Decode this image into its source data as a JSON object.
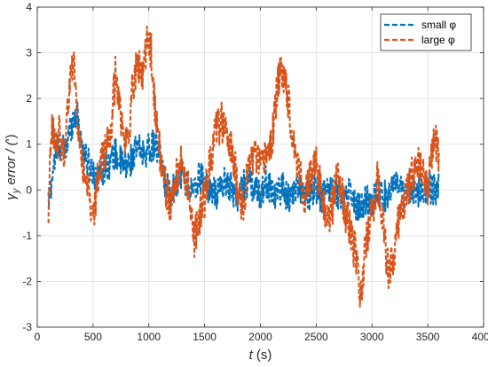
{
  "chart_data": {
    "type": "line",
    "xlabel": {
      "main": "t",
      "unit": " (s)"
    },
    "ylabel": {
      "sym": "γ",
      "sub": "y",
      "main": " error  / (",
      "unit": "ʹ",
      "close": ")"
    },
    "xlim": [
      0,
      4000
    ],
    "ylim": [
      -3,
      4
    ],
    "xticks": [
      0,
      500,
      1000,
      1500,
      2000,
      2500,
      3000,
      3500,
      4000
    ],
    "yticks": [
      -3,
      -2,
      -1,
      0,
      1,
      2,
      3,
      4
    ],
    "grid": true,
    "legend_position": "top-right",
    "x_range": [
      100,
      3600
    ],
    "series": [
      {
        "name": "small φ",
        "color": "#0072BD",
        "keypoints": [
          [
            100,
            -0.3
          ],
          [
            150,
            0.6
          ],
          [
            200,
            1.0
          ],
          [
            250,
            0.8
          ],
          [
            300,
            1.4
          ],
          [
            350,
            1.7
          ],
          [
            400,
            1.0
          ],
          [
            450,
            0.6
          ],
          [
            500,
            0.4
          ],
          [
            550,
            0.3
          ],
          [
            600,
            0.5
          ],
          [
            650,
            0.6
          ],
          [
            700,
            0.8
          ],
          [
            750,
            0.6
          ],
          [
            800,
            0.5
          ],
          [
            850,
            0.7
          ],
          [
            900,
            0.9
          ],
          [
            950,
            0.8
          ],
          [
            1000,
            0.9
          ],
          [
            1050,
            1.0
          ],
          [
            1100,
            0.7
          ],
          [
            1150,
            0.1
          ],
          [
            1200,
            -0.1
          ],
          [
            1250,
            0.2
          ],
          [
            1300,
            0.4
          ],
          [
            1350,
            0.1
          ],
          [
            1400,
            -0.1
          ],
          [
            1450,
            0.3
          ],
          [
            1500,
            0.2
          ],
          [
            1550,
            0.0
          ],
          [
            1600,
            -0.1
          ],
          [
            1650,
            0.1
          ],
          [
            1700,
            0.2
          ],
          [
            1750,
            0.0
          ],
          [
            1800,
            -0.2
          ],
          [
            1850,
            0.1
          ],
          [
            1900,
            0.2
          ],
          [
            1950,
            0.0
          ],
          [
            2000,
            -0.1
          ],
          [
            2050,
            0.2
          ],
          [
            2100,
            0.0
          ],
          [
            2150,
            -0.1
          ],
          [
            2200,
            0.1
          ],
          [
            2250,
            -0.2
          ],
          [
            2300,
            0.0
          ],
          [
            2350,
            0.1
          ],
          [
            2400,
            -0.2
          ],
          [
            2450,
            -0.1
          ],
          [
            2500,
            0.0
          ],
          [
            2550,
            -0.2
          ],
          [
            2600,
            0.1
          ],
          [
            2650,
            0.0
          ],
          [
            2700,
            -0.1
          ],
          [
            2750,
            -0.2
          ],
          [
            2800,
            0.0
          ],
          [
            2850,
            -0.3
          ],
          [
            2900,
            -0.4
          ],
          [
            2950,
            -0.2
          ],
          [
            3000,
            -0.3
          ],
          [
            3050,
            0.0
          ],
          [
            3100,
            -0.2
          ],
          [
            3150,
            0.0
          ],
          [
            3200,
            0.1
          ],
          [
            3250,
            0.0
          ],
          [
            3300,
            -0.2
          ],
          [
            3350,
            0.1
          ],
          [
            3400,
            0.0
          ],
          [
            3450,
            -0.1
          ],
          [
            3500,
            0.1
          ],
          [
            3550,
            0.0
          ],
          [
            3600,
            0.0
          ]
        ],
        "noise_amplitude": 0.35
      },
      {
        "name": "large φ",
        "color": "#D95319",
        "keypoints": [
          [
            100,
            -0.4
          ],
          [
            130,
            1.3
          ],
          [
            170,
            0.9
          ],
          [
            200,
            1.3
          ],
          [
            240,
            0.7
          ],
          [
            280,
            2.0
          ],
          [
            320,
            2.9
          ],
          [
            360,
            1.6
          ],
          [
            400,
            0.6
          ],
          [
            450,
            0.2
          ],
          [
            500,
            -0.7
          ],
          [
            540,
            0.2
          ],
          [
            580,
            0.6
          ],
          [
            620,
            1.0
          ],
          [
            660,
            1.3
          ],
          [
            700,
            2.5
          ],
          [
            740,
            1.8
          ],
          [
            780,
            1.0
          ],
          [
            820,
            1.2
          ],
          [
            860,
            2.4
          ],
          [
            900,
            2.8
          ],
          [
            940,
            2.5
          ],
          [
            980,
            3.2
          ],
          [
            1020,
            3.0
          ],
          [
            1060,
            1.5
          ],
          [
            1100,
            0.8
          ],
          [
            1150,
            0.1
          ],
          [
            1200,
            -0.4
          ],
          [
            1250,
            0.3
          ],
          [
            1300,
            0.6
          ],
          [
            1350,
            0.1
          ],
          [
            1400,
            -1.1
          ],
          [
            1450,
            -0.6
          ],
          [
            1500,
            -0.2
          ],
          [
            1550,
            0.6
          ],
          [
            1600,
            1.3
          ],
          [
            1650,
            1.5
          ],
          [
            1700,
            1.1
          ],
          [
            1750,
            0.8
          ],
          [
            1800,
            0.0
          ],
          [
            1850,
            -0.4
          ],
          [
            1900,
            0.6
          ],
          [
            1950,
            0.8
          ],
          [
            2000,
            0.4
          ],
          [
            2050,
            0.8
          ],
          [
            2100,
            1.0
          ],
          [
            2150,
            2.2
          ],
          [
            2200,
            2.7
          ],
          [
            2250,
            2.0
          ],
          [
            2300,
            1.0
          ],
          [
            2350,
            0.4
          ],
          [
            2400,
            -0.2
          ],
          [
            2450,
            0.3
          ],
          [
            2500,
            0.6
          ],
          [
            2550,
            -0.2
          ],
          [
            2600,
            -0.6
          ],
          [
            2650,
            -0.3
          ],
          [
            2700,
            0.4
          ],
          [
            2750,
            -0.4
          ],
          [
            2800,
            -0.8
          ],
          [
            2850,
            -1.4
          ],
          [
            2900,
            -2.3
          ],
          [
            2950,
            -1.1
          ],
          [
            3000,
            -0.5
          ],
          [
            3050,
            0.2
          ],
          [
            3100,
            -0.6
          ],
          [
            3150,
            -2.0
          ],
          [
            3200,
            -1.3
          ],
          [
            3250,
            -0.5
          ],
          [
            3300,
            -0.2
          ],
          [
            3350,
            0.3
          ],
          [
            3400,
            0.6
          ],
          [
            3450,
            0.3
          ],
          [
            3500,
            -0.1
          ],
          [
            3550,
            1.2
          ],
          [
            3600,
            0.8
          ]
        ],
        "noise_amplitude": 0.45
      }
    ]
  }
}
